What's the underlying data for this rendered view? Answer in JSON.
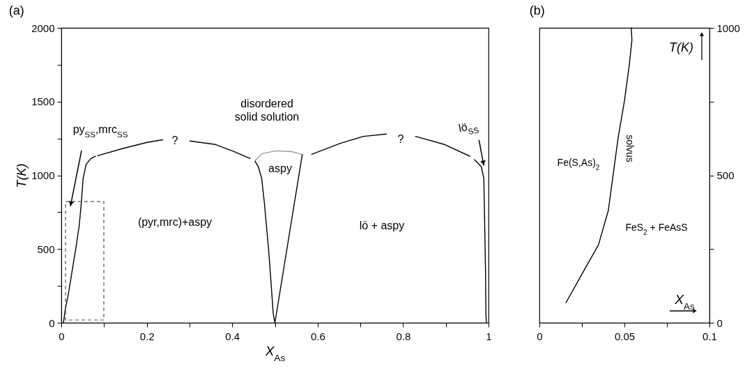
{
  "chart_data": [
    {
      "type": "line",
      "title": "(a)",
      "xlabel": "X$_{As}$",
      "ylabel": "T(K)",
      "xlim": [
        0,
        1
      ],
      "ylim": [
        0,
        2000
      ],
      "xticks": [
        0,
        {
          "value": 0.1,
          "label": null
        },
        0.2,
        {
          "value": 0.3,
          "label": null
        },
        0.4,
        {
          "value": 0.5,
          "label": null
        },
        0.6,
        {
          "value": 0.7,
          "label": null
        },
        0.8,
        {
          "value": 0.9,
          "label": null
        },
        1
      ],
      "yticks": [
        0,
        {
          "value": 250,
          "label": null
        },
        500,
        {
          "value": 750,
          "label": null
        },
        1000,
        {
          "value": 1250,
          "label": null
        },
        1500,
        {
          "value": 1750,
          "label": null
        },
        2000
      ],
      "series": [
        {
          "color": "#000000",
          "x": [
            0.005,
            0.009,
            0.017,
            0.025,
            0.034,
            0.042,
            0.047,
            0.051,
            0.058,
            0.069,
            0.08
          ],
          "values": [
            0,
            86,
            204,
            347,
            505,
            663,
            821,
            979,
            1074,
            1114,
            1130
          ]
        },
        {
          "color": "#000000",
          "x": [
            0.085,
            0.144,
            0.199,
            0.237
          ],
          "values": [
            1133,
            1182,
            1222,
            1241
          ]
        },
        {
          "color": "#000000",
          "x": [
            0.301,
            0.361,
            0.404,
            0.442
          ],
          "values": [
            1233,
            1209,
            1161,
            1114
          ]
        },
        {
          "color": "#000000",
          "x": [
            0.453,
            0.461,
            0.469,
            0.475,
            0.48,
            0.485,
            0.491,
            0.496,
            0.5
          ],
          "values": [
            1098,
            1059,
            979,
            821,
            663,
            505,
            268,
            62,
            0
          ]
        },
        {
          "color": "#999999",
          "x": [
            0.453,
            0.469,
            0.502,
            0.539,
            0.564
          ],
          "values": [
            1098,
            1146,
            1166,
            1161,
            1141
          ]
        },
        {
          "color": "#000000",
          "x": [
            0.564,
            0.5
          ],
          "values": [
            1141,
            0
          ]
        },
        {
          "color": "#000000",
          "x": [
            0.586,
            0.653,
            0.707,
            0.761
          ],
          "values": [
            1142,
            1217,
            1264,
            1280
          ]
        },
        {
          "color": "#000000",
          "x": [
            0.829,
            0.897,
            0.956
          ],
          "values": [
            1264,
            1209,
            1130
          ]
        },
        {
          "color": "#000000",
          "x": [
            0.967,
            0.983,
            0.989,
            0.991,
            0.993,
            0.994,
            0.995
          ],
          "values": [
            1106,
            1059,
            979,
            663,
            347,
            47,
            0
          ]
        }
      ],
      "annotations": [
        "py$_{SS}$,mrc$_{SS}$",
        {
          "text": "lö$_{SS}$",
          "x": 0.989,
          "y": 1066
        },
        "disordered\nsolid solution",
        "?",
        "?",
        "aspy",
        "(pyr,mrc)+aspy",
        "lö + aspy"
      ]
    },
    {
      "type": "line",
      "title": "(b)",
      "xlabel": "X$_{As}$",
      "y2label": "T(K)",
      "xlim": [
        0,
        0.1
      ],
      "y2lim": [
        0,
        1000
      ],
      "xticks": [
        0,
        {
          "value": 0.025,
          "label": null
        },
        0.05,
        {
          "value": 0.075,
          "label": null
        },
        0.1
      ],
      "y2ticks": [
        0,
        {
          "value": 250,
          "label": null
        },
        500,
        {
          "value": 750,
          "label": null
        },
        1000
      ],
      "series": [
        {
          "color": "#000000",
          "axis": "y2",
          "x": [
            0.0156,
            0.0259,
            0.0347,
            0.0405,
            0.0434,
            0.0463,
            0.05,
            0.0529,
            0.0544,
            0.054
          ],
          "values": [
            68,
            174,
            264,
            380,
            504,
            628,
            752,
            876,
            959,
            1000
          ]
        }
      ],
      "annotations": [
        "Fe(S,As)$_{2}$",
        "FeS$_{2}$ + FeAsS",
        "solvus"
      ]
    }
  ]
}
